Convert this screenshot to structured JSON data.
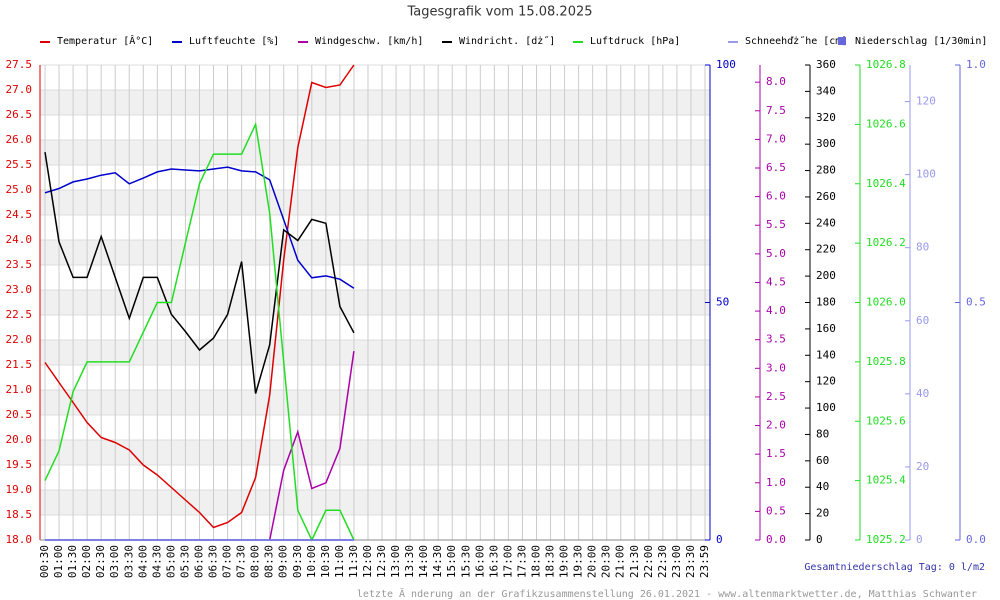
{
  "chart_data": {
    "type": "line",
    "title": "Tagesgrafik vom 15.08.2025",
    "categories": [
      "00:30",
      "01:00",
      "01:30",
      "02:00",
      "02:30",
      "03:00",
      "03:30",
      "04:00",
      "04:30",
      "05:00",
      "05:30",
      "06:00",
      "06:30",
      "07:00",
      "07:30",
      "08:00",
      "08:30",
      "09:00",
      "09:30",
      "10:00",
      "10:30",
      "11:00",
      "11:30",
      "12:00",
      "12:30",
      "13:00",
      "13:30",
      "14:00",
      "14:30",
      "15:00",
      "15:30",
      "16:00",
      "16:30",
      "17:00",
      "17:30",
      "18:00",
      "18:30",
      "19:00",
      "19:30",
      "20:00",
      "20:30",
      "21:00",
      "21:30",
      "22:00",
      "22:30",
      "23:00",
      "23:30",
      "23:59"
    ],
    "ylim": [
      18.0,
      27.5
    ],
    "yticks": [
      {
        "value": 18.0,
        "label": "18.0"
      },
      18.5,
      {
        "value": 19.0,
        "label": "19.0"
      },
      19.5,
      {
        "value": 20.0,
        "label": "20.0"
      },
      20.5,
      {
        "value": 21.0,
        "label": "21.0"
      },
      21.5,
      {
        "value": 22.0,
        "label": "22.0"
      },
      22.5,
      {
        "value": 23.0,
        "label": "23.0"
      },
      23.5,
      {
        "value": 24.0,
        "label": "24.0"
      },
      24.5,
      {
        "value": 25.0,
        "label": "25.0"
      },
      25.5,
      {
        "value": 26.0,
        "label": "26.0"
      },
      26.5,
      {
        "value": 27.0,
        "label": "27.0"
      },
      27.5
    ],
    "grid": true,
    "series": [
      {
        "name": "Temperatur [Â°C]",
        "color": "#dd0000",
        "axis": "y",
        "values": [
          21.55,
          21.15,
          20.75,
          20.35,
          20.05,
          19.95,
          19.8,
          19.5,
          19.3,
          19.05,
          18.8,
          18.55,
          18.25,
          18.35,
          18.55,
          19.25,
          20.9,
          23.6,
          25.85,
          27.15,
          27.05,
          27.1,
          27.5,
          null,
          null,
          null,
          null,
          null,
          null,
          null,
          null,
          null,
          null,
          null,
          null,
          null,
          null,
          null,
          null,
          null,
          null,
          null,
          null,
          null,
          null,
          null,
          null,
          null
        ]
      },
      {
        "name": "Luftfeuchte [%]",
        "color": "#0000cc",
        "axis": "y2",
        "ylim": [
          0,
          100
        ],
        "yticks": [
          0,
          50,
          100
        ],
        "values": [
          73.1,
          74,
          75.4,
          76,
          76.8,
          77.3,
          75,
          76.2,
          77.5,
          78.1,
          77.9,
          77.7,
          78.1,
          78.5,
          77.7,
          77.5,
          75.8,
          67.4,
          58.9,
          55.2,
          55.6,
          54.9,
          53,
          null,
          null,
          null,
          null,
          null,
          null,
          null,
          null,
          null,
          null,
          null,
          null,
          null,
          null,
          null,
          null,
          null,
          null,
          null,
          null,
          null,
          null,
          null,
          null,
          null
        ]
      },
      {
        "name": "Windgeschw. [km/h]",
        "color": "#aa00aa",
        "axis": "y3",
        "ylim": [
          0,
          8.3
        ],
        "yticks": [
          {
            "value": 0,
            "label": "0.0"
          },
          0.5,
          {
            "value": 1,
            "label": "1.0"
          },
          1.5,
          {
            "value": 2,
            "label": "2.0"
          },
          2.5,
          {
            "value": 3,
            "label": "3.0"
          },
          3.5,
          {
            "value": 4,
            "label": "4.0"
          },
          4.5,
          {
            "value": 5,
            "label": "5.0"
          },
          5.5,
          {
            "value": 6,
            "label": "6.0"
          },
          6.5,
          {
            "value": 7,
            "label": "7.0"
          },
          7.5,
          {
            "value": 8,
            "label": "8.0"
          }
        ],
        "values": [
          null,
          null,
          null,
          null,
          null,
          null,
          null,
          null,
          null,
          null,
          null,
          null,
          null,
          null,
          null,
          null,
          0,
          1.22,
          1.89,
          0.9,
          1.0,
          1.6,
          3.3,
          null,
          null,
          null,
          null,
          null,
          null,
          null,
          null,
          null,
          null,
          null,
          null,
          null,
          null,
          null,
          null,
          null,
          null,
          null,
          null,
          null,
          null,
          null,
          null,
          null
        ]
      },
      {
        "name": "Windricht. [dż˝]",
        "color": "#000000",
        "axis": "y4",
        "ylim": [
          0,
          360
        ],
        "yticks": [
          0,
          20,
          40,
          60,
          80,
          100,
          120,
          140,
          160,
          180,
          200,
          220,
          240,
          260,
          280,
          300,
          320,
          340,
          360
        ],
        "values": [
          294,
          226,
          199,
          199,
          230,
          199,
          168,
          199,
          199,
          171,
          158,
          144,
          153,
          171,
          211,
          111,
          148,
          235,
          227,
          243,
          240,
          177,
          157,
          null,
          null,
          null,
          null,
          null,
          null,
          null,
          null,
          null,
          null,
          null,
          null,
          null,
          null,
          null,
          null,
          null,
          null,
          null,
          null,
          null,
          null,
          null,
          null,
          null
        ]
      },
      {
        "name": "Luftdruck [hPa]",
        "color": "#22dd22",
        "axis": "y5",
        "ylim": [
          1025.2,
          1026.8
        ],
        "yticks": [
          1025.2,
          1025.4,
          1025.6,
          1025.8,
          {
            "value": 1026.0,
            "label": "1026.0"
          },
          1026.2,
          1026.4,
          1026.6,
          1026.8
        ],
        "values": [
          1025.4,
          1025.5,
          1025.7,
          1025.8,
          1025.8,
          1025.8,
          1025.8,
          1025.9,
          1026.0,
          1026.0,
          1026.2,
          1026.4,
          1026.5,
          1026.5,
          1026.5,
          1026.6,
          1026.3,
          1025.8,
          1025.3,
          1025.2,
          1025.3,
          1025.3,
          1025.2,
          null,
          null,
          null,
          null,
          null,
          null,
          null,
          null,
          null,
          null,
          null,
          null,
          null,
          null,
          null,
          null,
          null,
          null,
          null,
          null,
          null,
          null,
          null,
          null,
          null
        ]
      },
      {
        "name": "Schneehďż˝he [cm]",
        "color": "#9999ee",
        "axis": "y6",
        "ylim": [
          0,
          130
        ],
        "yticks": [
          0,
          20,
          40,
          60,
          80,
          100,
          120
        ],
        "values": [
          0,
          0,
          0,
          0,
          0,
          0,
          0,
          0,
          0,
          0,
          0,
          0,
          0,
          0,
          0,
          0,
          0,
          0,
          0,
          0,
          0,
          0,
          0,
          null,
          null,
          null,
          null,
          null,
          null,
          null,
          null,
          null,
          null,
          null,
          null,
          null,
          null,
          null,
          null,
          null,
          null,
          null,
          null,
          null,
          null,
          null,
          null,
          null
        ]
      },
      {
        "name": "Niederschlag [1/30min]",
        "color": "#6666dd",
        "axis": "y7",
        "ylim": [
          0,
          1.0
        ],
        "yticks": [
          {
            "value": 0,
            "label": "0.0"
          },
          0.5,
          {
            "value": 1.0,
            "label": "1.0"
          }
        ],
        "values": [
          0,
          0,
          0,
          0,
          0,
          0,
          0,
          0,
          0,
          0,
          0,
          0,
          0,
          0,
          0,
          0,
          0,
          0,
          0,
          0,
          0,
          0,
          0,
          null,
          null,
          null,
          null,
          null,
          null,
          null,
          null,
          null,
          null,
          null,
          null,
          null,
          null,
          null,
          null,
          null,
          null,
          null,
          null,
          null,
          null,
          null,
          null,
          null
        ]
      }
    ],
    "annotations": [
      "Gesamtniederschlag Tag: 0 l/m2",
      "letzte Ă nderung an der Grafikzusammenstellung 26.01.2021 - www.altenmarktwetter.de, Matthias Schwanter"
    ]
  }
}
